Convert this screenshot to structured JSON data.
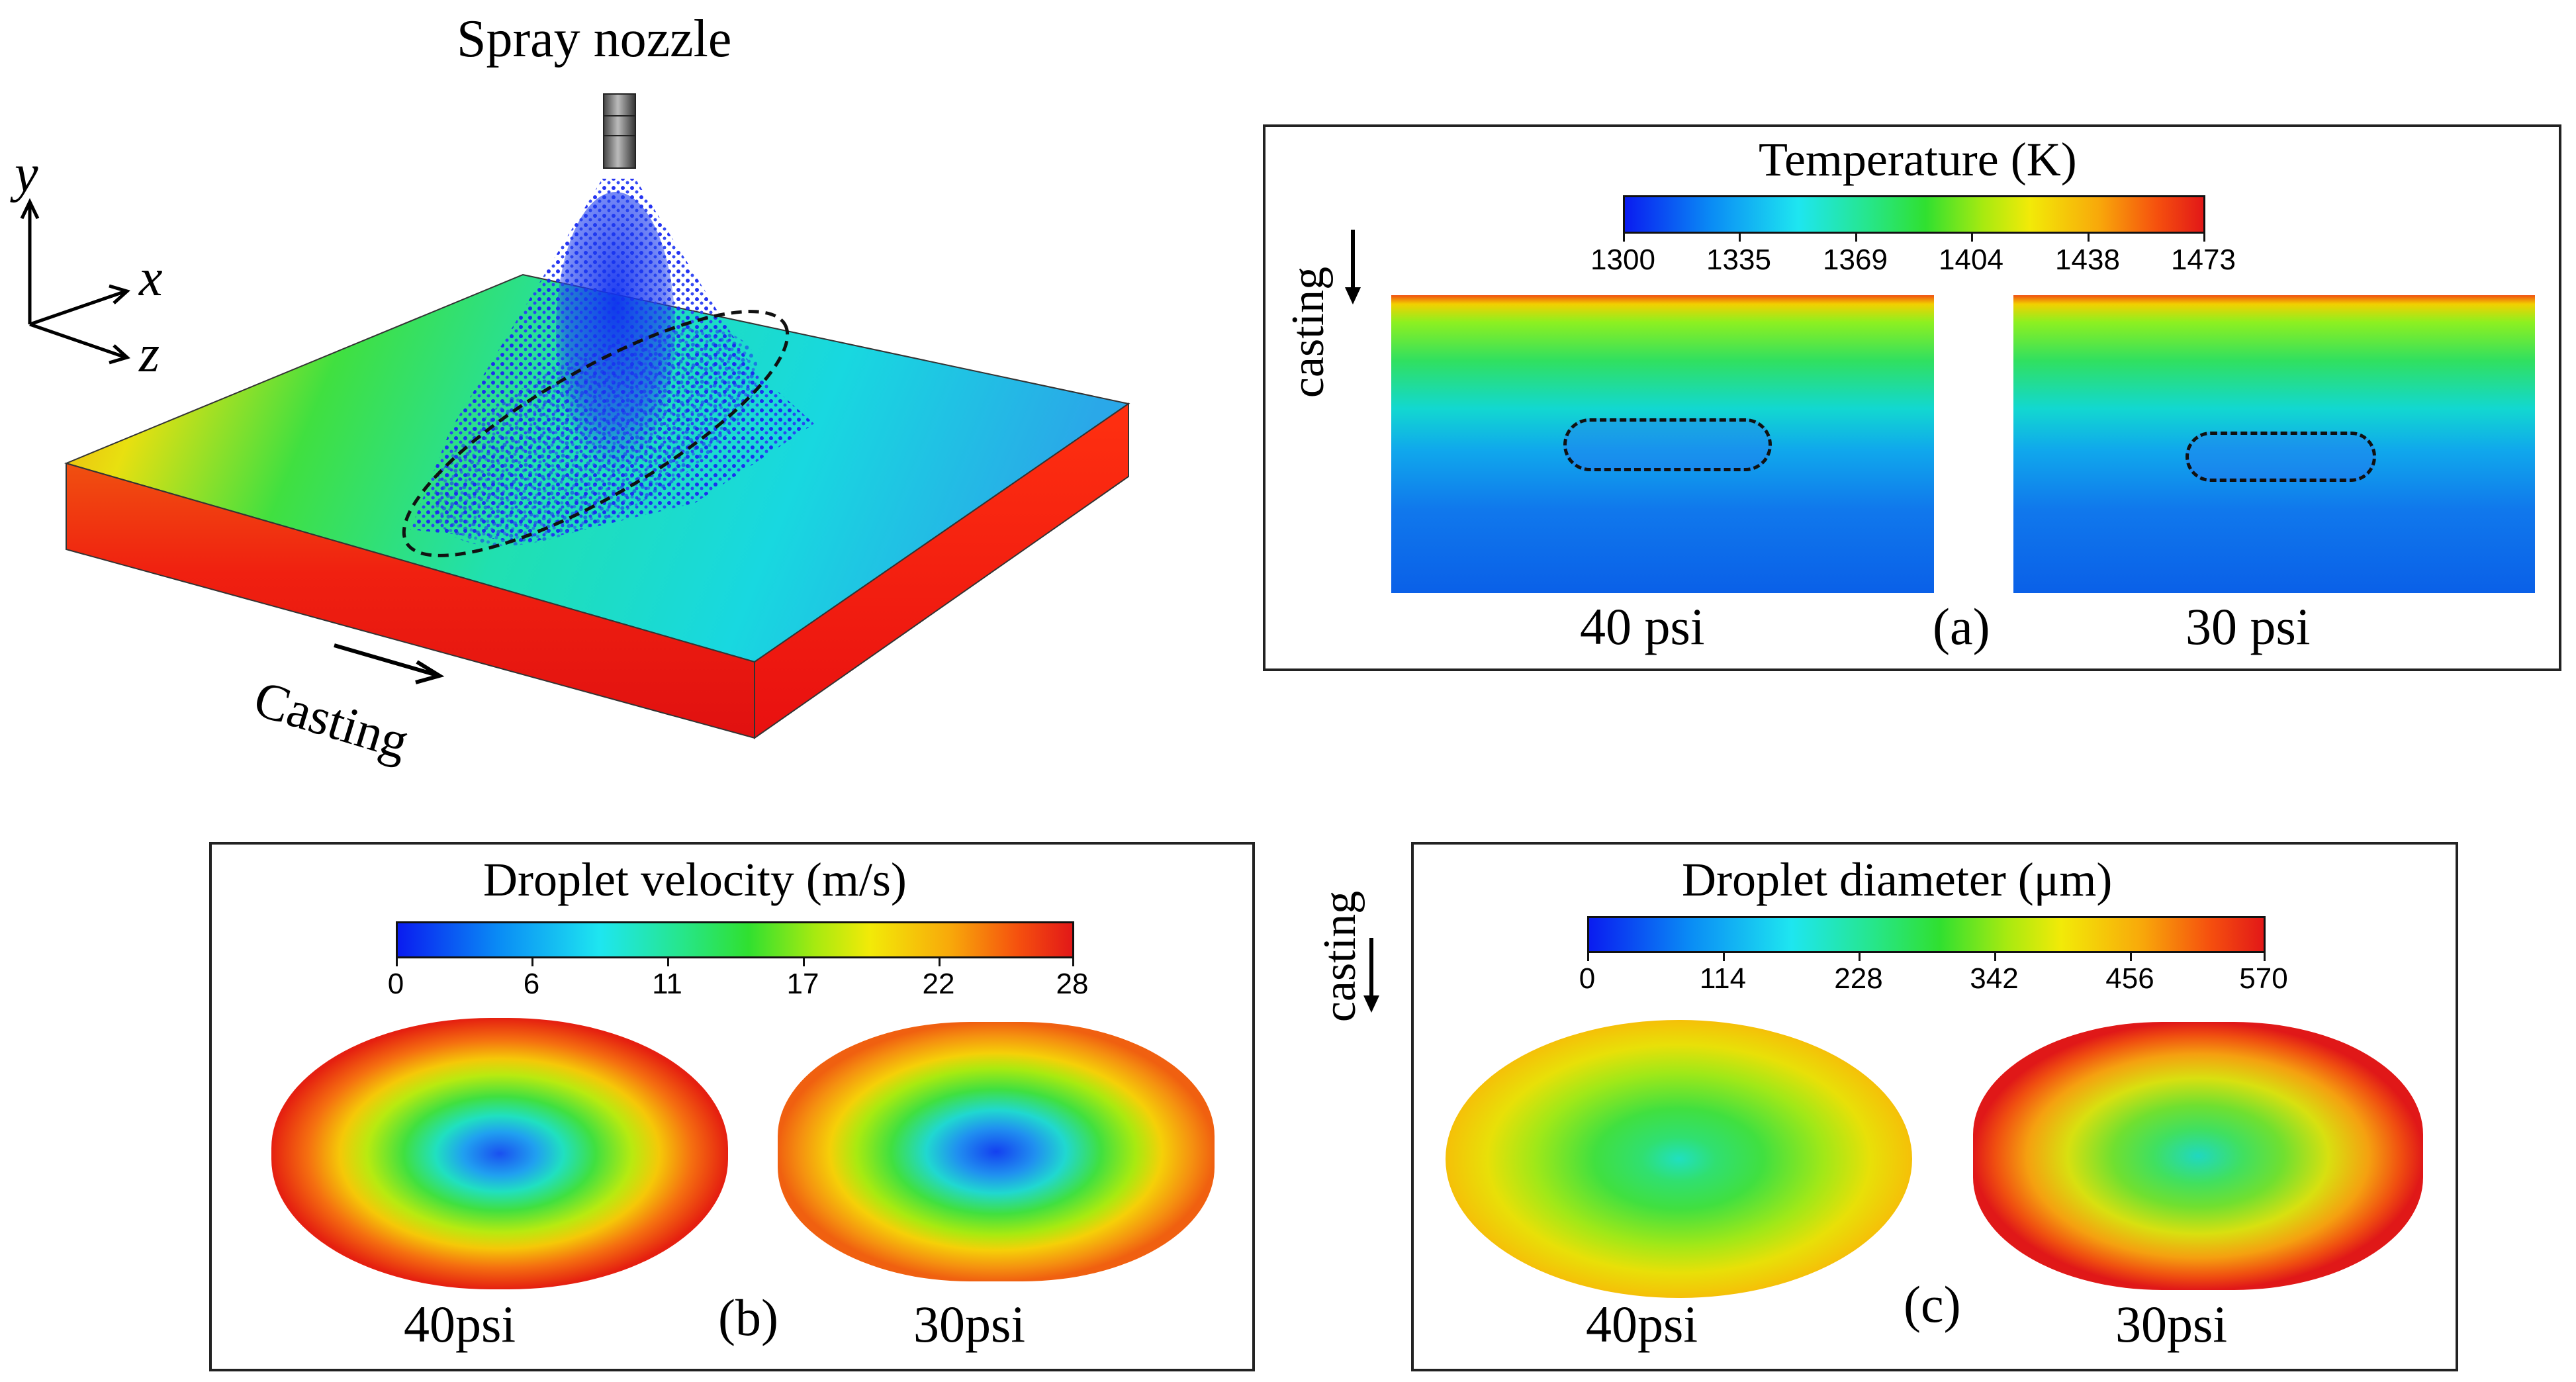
{
  "figure": {
    "spray_label": "Spray nozzle",
    "axis_y": "y",
    "axis_x": "x",
    "axis_z": "z",
    "casting_label": "Casting"
  },
  "panel_a": {
    "colorbar_title": "Temperature (K)",
    "ticks": [
      "1300",
      "1335",
      "1369",
      "1404",
      "1438",
      "1473"
    ],
    "casting_label": "casting",
    "left_label": "40 psi",
    "right_label": "30 psi",
    "panel_letter": "(a)"
  },
  "panel_b": {
    "colorbar_title": "Droplet velocity (m/s)",
    "ticks": [
      "0",
      "6",
      "11",
      "17",
      "22",
      "28"
    ],
    "left_label": "40psi",
    "right_label": "30psi",
    "panel_letter": "(b)"
  },
  "panel_c": {
    "colorbar_title": "Droplet diameter (μm)",
    "ticks": [
      "0",
      "114",
      "228",
      "342",
      "456",
      "570"
    ],
    "casting_label": "casting",
    "left_label": "40psi",
    "right_label": "30psi",
    "panel_letter": "(c)"
  },
  "colors": {
    "low": "#0a1cf0",
    "mid": "#30e030",
    "high": "#e21818"
  }
}
